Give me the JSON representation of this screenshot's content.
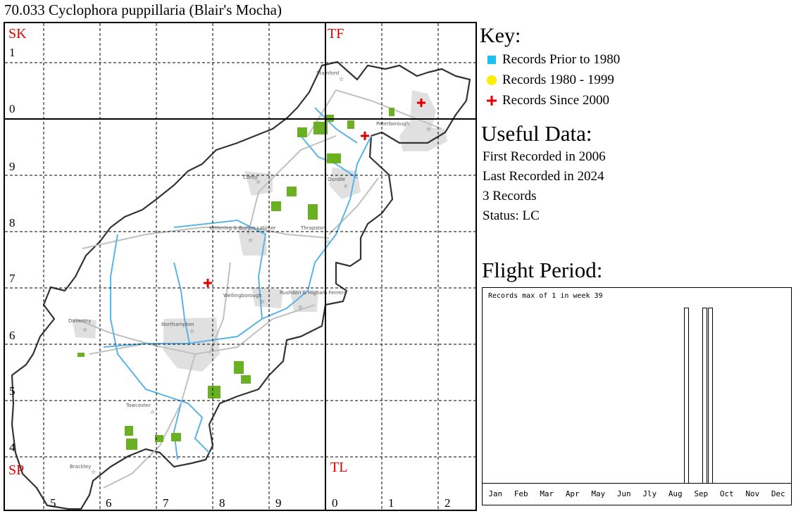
{
  "title": "70.033 Cyclophora puppillaria (Blair's Mocha)",
  "map": {
    "squares": [
      "SK",
      "TF",
      "SP",
      "TL"
    ],
    "row_numbers": [
      "1",
      "0",
      "9",
      "8",
      "7",
      "6",
      "5",
      "4"
    ],
    "col_numbers": [
      "5",
      "6",
      "7",
      "8",
      "9",
      "0",
      "1",
      "2"
    ],
    "towns": [
      "Stamford",
      "Peterborough",
      "Corby",
      "Oundle",
      "Kettering & Burton Latimer",
      "Thrapston",
      "Wellingborough",
      "Rushden & Higham Ferrers",
      "Daventry",
      "Northampton",
      "Towcester",
      "Brackley"
    ],
    "colors": {
      "boundary": "#333333",
      "river": "#5ab4e6",
      "road": "#c0c0c0",
      "urban": "#e0e0e0",
      "woodland": "#6ab023",
      "record_since_2000": "#e00000"
    }
  },
  "key": {
    "title": "Key:",
    "items": [
      {
        "label": "Records Prior to 1980",
        "symbol": "square",
        "color": "#1ec0f0"
      },
      {
        "label": "Records 1980 - 1999",
        "symbol": "circle",
        "color": "#ffee00"
      },
      {
        "label": "Records Since 2000",
        "symbol": "cross",
        "color": "#e00000"
      }
    ]
  },
  "useful": {
    "title": "Useful Data:",
    "first": "First Recorded in 2006",
    "last": "Last Recorded in 2024",
    "count": "3 Records",
    "status": "Status: LC"
  },
  "flight": {
    "title": "Flight Period:",
    "caption": "Records max of 1 in week 39",
    "months": [
      "Jan",
      "Feb",
      "Mar",
      "Apr",
      "May",
      "Jun",
      "Jly",
      "Aug",
      "Sep",
      "Oct",
      "Nov",
      "Dec"
    ],
    "max": 1,
    "bars": [
      {
        "week": 35,
        "value": 1
      },
      {
        "week": 38,
        "value": 1
      },
      {
        "week": 39,
        "value": 1
      }
    ]
  }
}
